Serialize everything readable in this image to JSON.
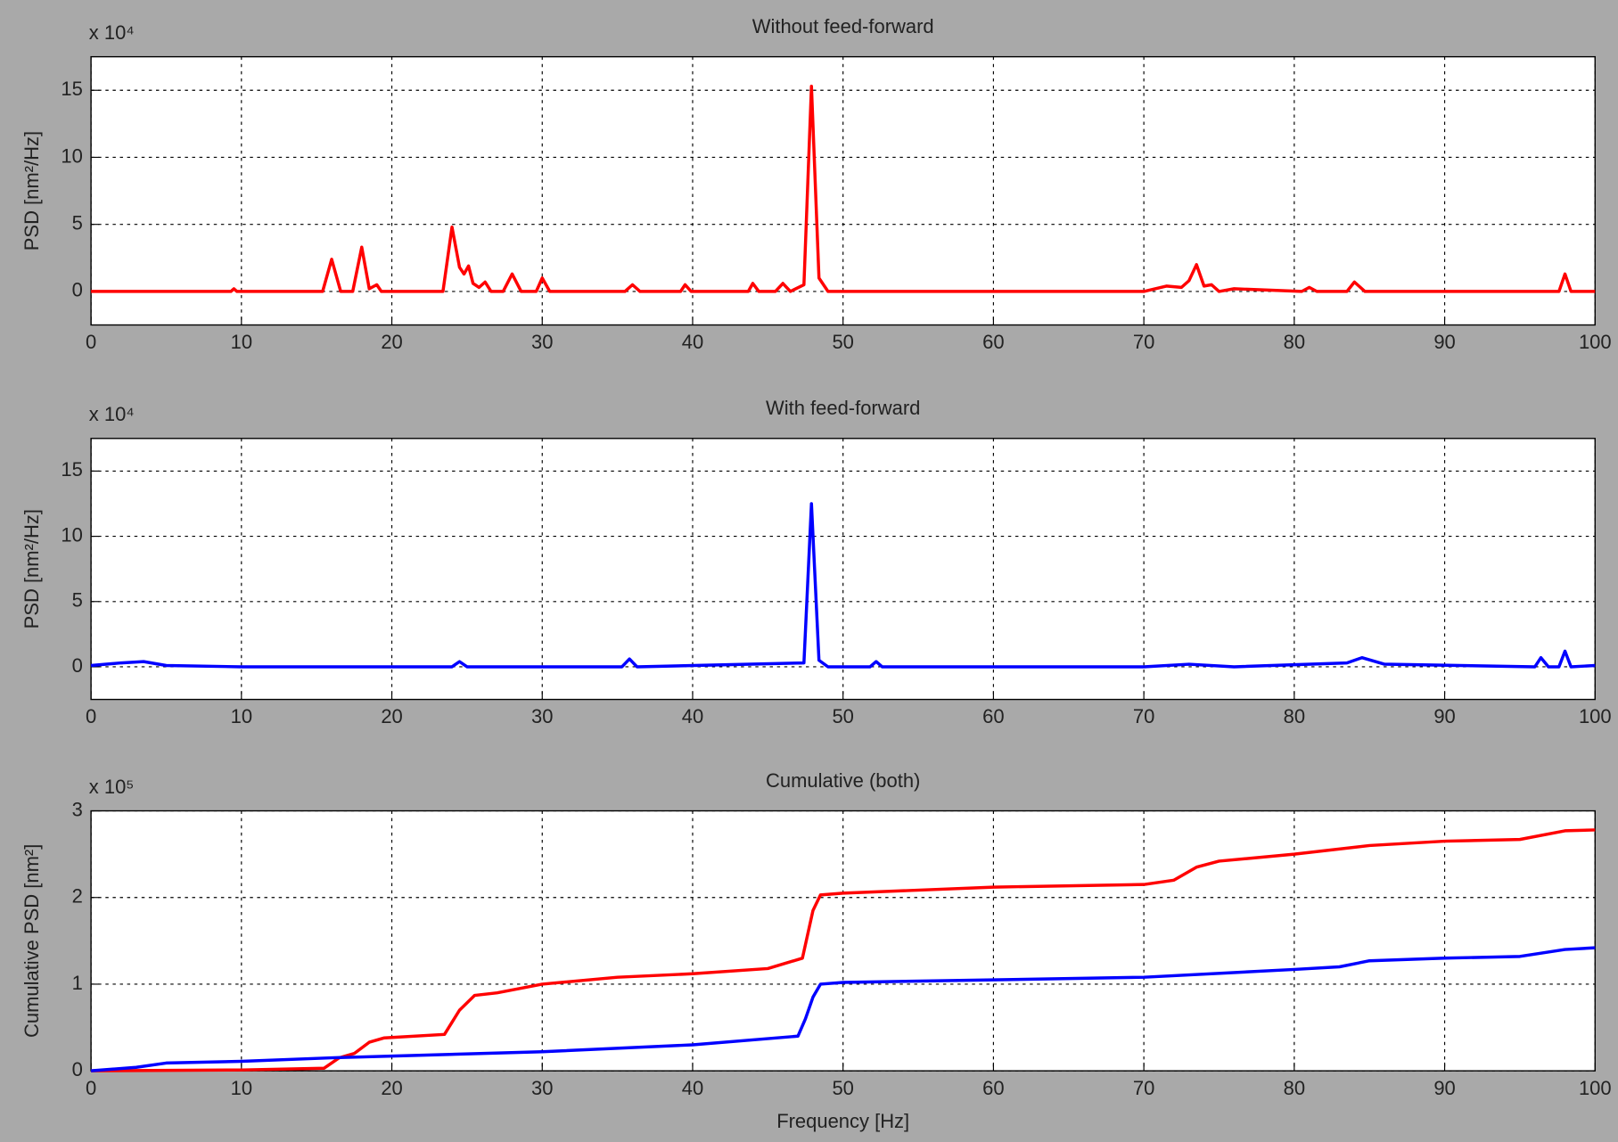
{
  "chart_data": [
    {
      "type": "line",
      "title": "Without feed-forward",
      "y_label": "PSD [nm²/Hz]",
      "y_multiplier": "x 10⁴",
      "xlim": [
        0,
        100
      ],
      "xticks": [
        0,
        10,
        20,
        30,
        40,
        50,
        60,
        70,
        80,
        90,
        100
      ],
      "ylim": [
        -2.5,
        17.5
      ],
      "yticks": [
        0,
        5,
        10,
        15
      ],
      "grid": true,
      "series": [
        {
          "name": "Without feed-forward",
          "color": "#ff0000",
          "x": [
            0,
            9.3,
            9.5,
            9.7,
            15.4,
            16,
            16.6,
            17.4,
            18,
            18.5,
            19,
            19.3,
            19.8,
            22,
            23.4,
            24,
            24.5,
            24.8,
            25.1,
            25.4,
            25.8,
            26.2,
            26.6,
            27.4,
            28,
            28.6,
            29.6,
            30,
            30.5,
            35.5,
            36,
            36.5,
            39.2,
            39.5,
            39.9,
            43.7,
            44,
            44.4,
            45.5,
            46,
            46.5,
            47.4,
            47.9,
            48.4,
            49,
            70,
            71.5,
            72.5,
            73,
            73.5,
            74,
            74.5,
            75,
            76,
            80.5,
            81,
            81.5,
            83.5,
            84,
            84.7,
            85.5,
            97.6,
            98,
            98.4,
            100
          ],
          "values": [
            0,
            0,
            0.2,
            0,
            0,
            2.4,
            0,
            0,
            3.3,
            0.2,
            0.5,
            0,
            0,
            0,
            0,
            4.8,
            1.8,
            1.3,
            1.9,
            0.6,
            0.3,
            0.7,
            0,
            0,
            1.3,
            0,
            0,
            1,
            0,
            0,
            0.5,
            0,
            0,
            0.5,
            0,
            0,
            0.6,
            0,
            0,
            0.6,
            0,
            0.5,
            15.3,
            1,
            0,
            0,
            0.4,
            0.3,
            0.8,
            2,
            0.4,
            0.5,
            0,
            0.2,
            0,
            0.3,
            0,
            0,
            0.7,
            0,
            0,
            0,
            1.3,
            0,
            0
          ]
        }
      ]
    },
    {
      "type": "line",
      "title": "With feed-forward",
      "y_label": "PSD [nm²/Hz]",
      "y_multiplier": "x 10⁴",
      "xlim": [
        0,
        100
      ],
      "xticks": [
        0,
        10,
        20,
        30,
        40,
        50,
        60,
        70,
        80,
        90,
        100
      ],
      "ylim": [
        -2.5,
        17.5
      ],
      "yticks": [
        0,
        5,
        10,
        15
      ],
      "grid": true,
      "series": [
        {
          "name": "With feed-forward",
          "color": "#0000ff",
          "x": [
            0,
            2,
            3.5,
            5,
            10,
            24,
            24.5,
            25,
            35.3,
            35.8,
            36.3,
            47.4,
            47.9,
            48.4,
            49,
            51.8,
            52.2,
            52.6,
            70,
            73,
            76,
            83.5,
            84.5,
            86,
            96,
            96.4,
            96.9,
            97.6,
            98,
            98.4,
            100
          ],
          "values": [
            0.1,
            0.3,
            0.4,
            0.1,
            0,
            0,
            0.4,
            0,
            0,
            0.6,
            0,
            0.3,
            12.5,
            0.5,
            0,
            0,
            0.4,
            0,
            0,
            0.2,
            0,
            0.3,
            0.7,
            0.2,
            0,
            0.7,
            0,
            0,
            1.2,
            0,
            0.1
          ]
        }
      ]
    },
    {
      "type": "line",
      "title": "Cumulative (both)",
      "y_label": "Cumulative PSD [nm²]",
      "x_label": "Frequency [Hz]",
      "y_multiplier": "x 10⁵",
      "xlim": [
        0,
        100
      ],
      "xticks": [
        0,
        10,
        20,
        30,
        40,
        50,
        60,
        70,
        80,
        90,
        100
      ],
      "ylim": [
        0,
        3
      ],
      "yticks": [
        0,
        1,
        2,
        3
      ],
      "grid": true,
      "series": [
        {
          "name": "Without feed-forward",
          "color": "#ff0000",
          "x": [
            0,
            10,
            15.5,
            16.5,
            17.5,
            18.5,
            19.5,
            23.5,
            24.5,
            25.5,
            27,
            28.5,
            30,
            35,
            40,
            45,
            47.3,
            48,
            48.5,
            50,
            60,
            70,
            72,
            73.5,
            75,
            80,
            85,
            90,
            95,
            98,
            100
          ],
          "values": [
            0,
            0.01,
            0.03,
            0.15,
            0.2,
            0.33,
            0.38,
            0.42,
            0.7,
            0.87,
            0.9,
            0.95,
            1.0,
            1.08,
            1.12,
            1.18,
            1.3,
            1.85,
            2.03,
            2.05,
            2.12,
            2.15,
            2.2,
            2.35,
            2.42,
            2.5,
            2.6,
            2.65,
            2.67,
            2.77,
            2.78
          ]
        },
        {
          "name": "With feed-forward",
          "color": "#0000ff",
          "x": [
            0,
            3,
            5,
            10,
            16,
            20,
            30,
            40,
            47,
            47.5,
            48,
            48.5,
            50,
            60,
            70,
            80,
            83,
            85,
            90,
            95,
            98,
            100
          ],
          "values": [
            0,
            0.04,
            0.09,
            0.11,
            0.15,
            0.17,
            0.22,
            0.3,
            0.4,
            0.6,
            0.85,
            1.0,
            1.02,
            1.05,
            1.08,
            1.17,
            1.2,
            1.27,
            1.3,
            1.32,
            1.4,
            1.42
          ]
        }
      ]
    }
  ]
}
